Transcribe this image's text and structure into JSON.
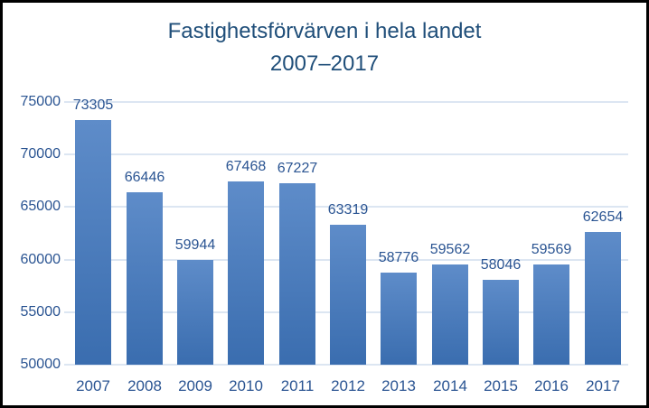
{
  "chart_data": {
    "type": "bar",
    "title": "Fastighetsförvärven i hela landet",
    "subtitle": "2007–2017",
    "categories": [
      "2007",
      "2008",
      "2009",
      "2010",
      "2011",
      "2012",
      "2013",
      "2014",
      "2015",
      "2016",
      "2017"
    ],
    "values": [
      73305,
      66446,
      59944,
      67468,
      67227,
      63319,
      58776,
      59562,
      58046,
      59569,
      62654
    ],
    "xlabel": "",
    "ylabel": "",
    "ylim": [
      50000,
      75000
    ],
    "yticks": [
      50000,
      55000,
      60000,
      65000,
      70000,
      75000
    ],
    "grid": true,
    "legend": "none",
    "data_labels": "outside-end",
    "colors": {
      "bar_gradient_top": "#5E8CC9",
      "bar_gradient_bottom": "#3A6DAF",
      "gridline": "#DCE6F2",
      "title_text": "#1F4E79",
      "axis_text": "#2A5492",
      "value_label_text": "#2A5492",
      "background": "#FFFFFF",
      "frame_border": "#000000"
    }
  }
}
